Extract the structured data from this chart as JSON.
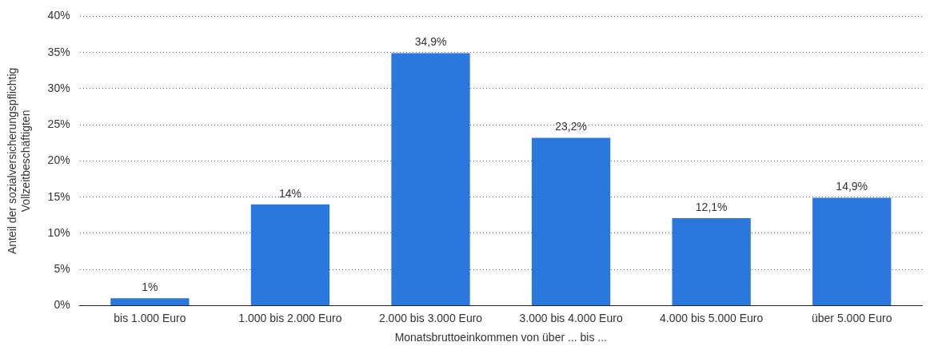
{
  "chart_data": {
    "type": "bar",
    "xlabel": "Monatsbruttoeinkommen von über ... bis ...",
    "ylabel": "Anteil der sozialversicherungspflichtig Vollzeitbeschäftigten",
    "categories": [
      "bis 1.000 Euro",
      "1.000 bis 2.000 Euro",
      "2.000 bis 3.000 Euro",
      "3.000 bis 4.000 Euro",
      "4.000 bis 5.000 Euro",
      "über 5.000 Euro"
    ],
    "values": [
      1,
      14,
      34.9,
      23.2,
      12.1,
      14.9
    ],
    "value_labels": [
      "1%",
      "14%",
      "34,9%",
      "23,2%",
      "12,1%",
      "14,9%"
    ],
    "color": "#2a77dd",
    "ylim": [
      0,
      40
    ],
    "yticks": [
      {
        "value": 0,
        "label": "0%"
      },
      {
        "value": 5,
        "label": "5%"
      },
      {
        "value": 10,
        "label": "10%"
      },
      {
        "value": 15,
        "label": "15%"
      },
      {
        "value": 20,
        "label": "20%"
      },
      {
        "value": 25,
        "label": "25%"
      },
      {
        "value": 30,
        "label": "30%"
      },
      {
        "value": 35,
        "label": "35%"
      },
      {
        "value": 40,
        "label": "40%"
      }
    ],
    "grid": "y"
  }
}
